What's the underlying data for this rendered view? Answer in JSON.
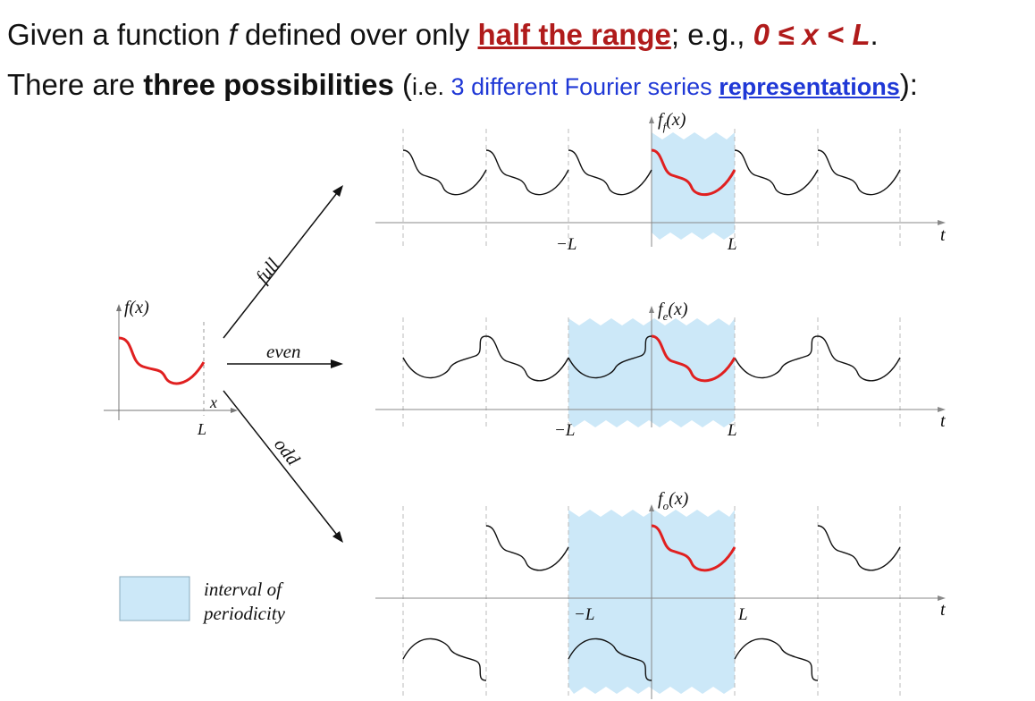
{
  "header": {
    "line1": {
      "prefix": "Given a function ",
      "f": "f",
      "mid": " defined over only ",
      "half_range": "half the range",
      "after": "; e.g., ",
      "math": "0 ≤ x < L",
      "end": "."
    },
    "line2": {
      "prefix": "There are ",
      "three": "three possibilities",
      "open": " (",
      "ie": "i.e. ",
      "blue_text": "3 different Fourier series ",
      "representations": "representations",
      "close": "):"
    }
  },
  "diagram": {
    "source": {
      "ylabel": "f(x)",
      "xlabel": "x",
      "tick": "L"
    },
    "arrows": {
      "full": "full",
      "even": "even",
      "odd": "odd"
    },
    "panels": [
      {
        "id": "full",
        "ylabel_base": "f",
        "ylabel_sub": "f",
        "ylabel_tail": "(x)",
        "neg_tick": "−L",
        "pos_tick": "L",
        "axis": "t"
      },
      {
        "id": "even",
        "ylabel_base": "f",
        "ylabel_sub": "e",
        "ylabel_tail": "(x)",
        "neg_tick": "−L",
        "pos_tick": "L",
        "axis": "t"
      },
      {
        "id": "odd",
        "ylabel_base": "f",
        "ylabel_sub": "o",
        "ylabel_tail": "(x)",
        "neg_tick": "−L",
        "pos_tick": "L",
        "axis": "t"
      }
    ],
    "legend": {
      "line1": "interval of",
      "line2": "periodicity"
    },
    "colors": {
      "highlight": "#e02020",
      "interval": "#cce8f8",
      "curve": "#111111"
    }
  }
}
